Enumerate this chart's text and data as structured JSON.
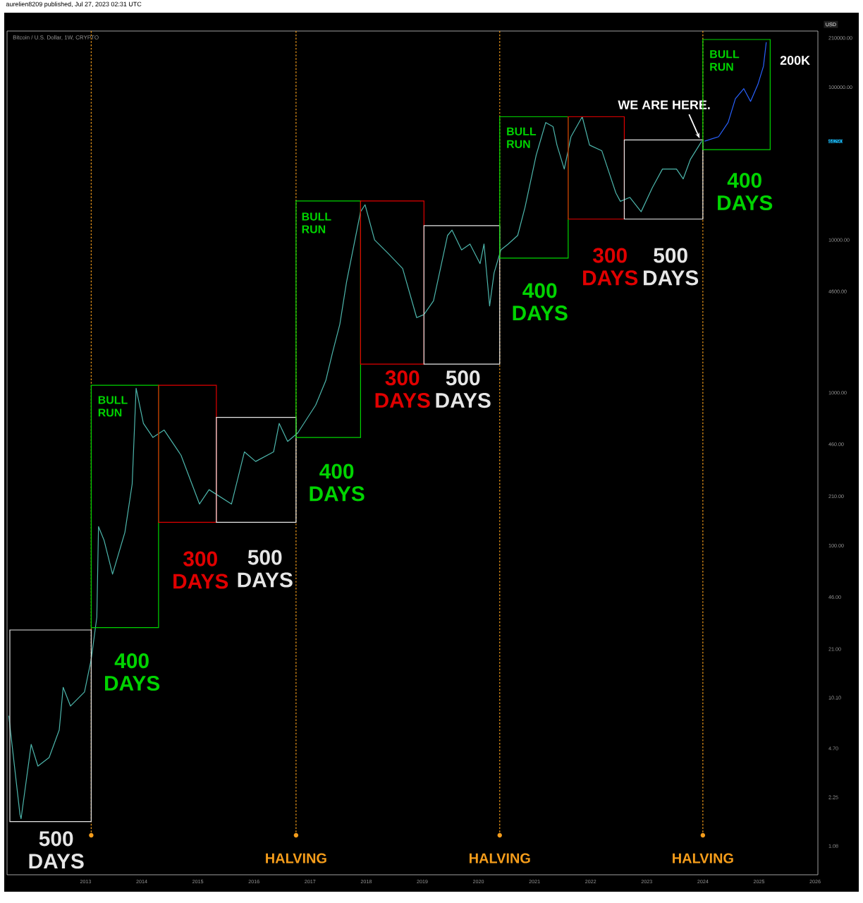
{
  "chart_data": {
    "type": "line",
    "title": "aurelien8209 published, Jul 27, 2023 02:31 UTC",
    "subtitle": "Bitcoin / U.S. Dollar, 1W, CRYPTO",
    "ylabel": "USD",
    "log": "y",
    "xlim": [
      2011.6,
      2026.05
    ],
    "ylim": [
      0.7,
      233000
    ],
    "xticks": [
      2013,
      2014,
      2015,
      2016,
      2017,
      2018,
      2019,
      2020,
      2021,
      2022,
      2023,
      2024,
      2025,
      2026
    ],
    "yticks": [
      {
        "value": 1.08,
        "label": "1.08"
      },
      {
        "value": 2.25,
        "label": "2.25"
      },
      {
        "value": 4.7,
        "label": "4.70"
      },
      {
        "value": 10.1,
        "label": "10.10"
      },
      {
        "value": 21,
        "label": "21.00"
      },
      {
        "value": 46,
        "label": "46.00"
      },
      {
        "value": 100,
        "label": "100.00"
      },
      {
        "value": 210,
        "label": "210.00"
      },
      {
        "value": 460,
        "label": "460.00"
      },
      {
        "value": 1000,
        "label": "1000.00"
      },
      {
        "value": 4600,
        "label": "4600.00"
      },
      {
        "value": 10000,
        "label": "10000.00"
      },
      {
        "value": 44290,
        "label": "44290"
      },
      {
        "value": 100000,
        "label": "100000.00"
      },
      {
        "value": 210000,
        "label": "210000.00"
      }
    ],
    "series": [
      {
        "color": "#4db6ac",
        "x": [
          2011.63,
          2011.83,
          2011.85,
          2012.03,
          2012.15,
          2012.35,
          2012.53,
          2012.6,
          2012.73,
          2012.98,
          2013.1,
          2013.2,
          2013.23,
          2013.33,
          2013.48,
          2013.7,
          2013.83,
          2013.9,
          2014.03,
          2014.2,
          2014.4,
          2014.7,
          2015.03,
          2015.2,
          2015.6,
          2015.83,
          2016.03,
          2016.35,
          2016.45,
          2016.6,
          2016.78,
          2017.1,
          2017.28,
          2017.4,
          2017.53,
          2017.65,
          2017.9,
          2017.98,
          2018.15,
          2018.4,
          2018.65,
          2018.9,
          2019.03,
          2019.2,
          2019.45,
          2019.53,
          2019.7,
          2019.85,
          2020.03,
          2020.1,
          2020.2,
          2020.28,
          2020.4,
          2020.53,
          2020.7,
          2020.83,
          2021.03,
          2021.2,
          2021.33,
          2021.4,
          2021.53,
          2021.65,
          2021.85,
          2021.98,
          2022.2,
          2022.45,
          2022.53,
          2022.7,
          2022.9,
          2023.1,
          2023.28,
          2023.53,
          2023.65,
          2023.78,
          2023.98
        ],
        "values": [
          7.7,
          1.74,
          1.63,
          5.0,
          3.6,
          4.1,
          6.2,
          11.8,
          8.9,
          11.0,
          18,
          34,
          133,
          108,
          65,
          122,
          253,
          1070,
          630,
          510,
          570,
          390,
          187,
          232,
          187,
          410,
          355,
          410,
          630,
          480,
          545,
          830,
          1200,
          1830,
          2800,
          5300,
          15300,
          17000,
          10000,
          8100,
          6500,
          3100,
          3250,
          4000,
          10700,
          11600,
          8600,
          9400,
          7000,
          9400,
          3700,
          6100,
          8600,
          9400,
          10700,
          16300,
          35900,
          58700,
          55200,
          41800,
          29100,
          47400,
          64000,
          41800,
          38300,
          20300,
          17900,
          19000,
          15300,
          22000,
          29100,
          29100,
          25100,
          33800,
          44290
        ]
      },
      {
        "color": "#2962ff",
        "x": [
          2024.03,
          2024.28,
          2024.45,
          2024.58,
          2024.73,
          2024.85,
          2024.98,
          2025.08,
          2025.13
        ],
        "values": [
          44290,
          47400,
          58700,
          84000,
          97700,
          80700,
          104000,
          137000,
          197000
        ]
      }
    ],
    "ref_lines": [
      {
        "axis": "x",
        "value": 2013.1,
        "color": "#f59d1b",
        "line_style": "dotted"
      },
      {
        "axis": "x",
        "value": 2016.75,
        "label": "HALVING",
        "color": "#f59d1b",
        "line_style": "dotted"
      },
      {
        "axis": "x",
        "value": 2020.38,
        "label": "HALVING",
        "color": "#f59d1b",
        "line_style": "dotted"
      },
      {
        "axis": "x",
        "value": 2024.0,
        "label": "HALVING",
        "color": "#f59d1b",
        "line_style": "dotted"
      }
    ],
    "annotations": [
      "500 DAYS",
      "BULL RUN",
      "400 DAYS",
      "300 DAYS",
      "500 DAYS",
      "BULL RUN",
      "400 DAYS",
      "300 DAYS",
      "500 DAYS",
      "BULL RUN",
      "400 DAYS",
      "300 DAYS",
      "500 DAYS",
      "BULL RUN",
      "400 DAYS",
      {
        "text": "WE ARE HERE.",
        "x": 2023.98,
        "y": 44290
      },
      {
        "text": "200K",
        "x": 2025.13,
        "y": 197000
      }
    ]
  }
}
